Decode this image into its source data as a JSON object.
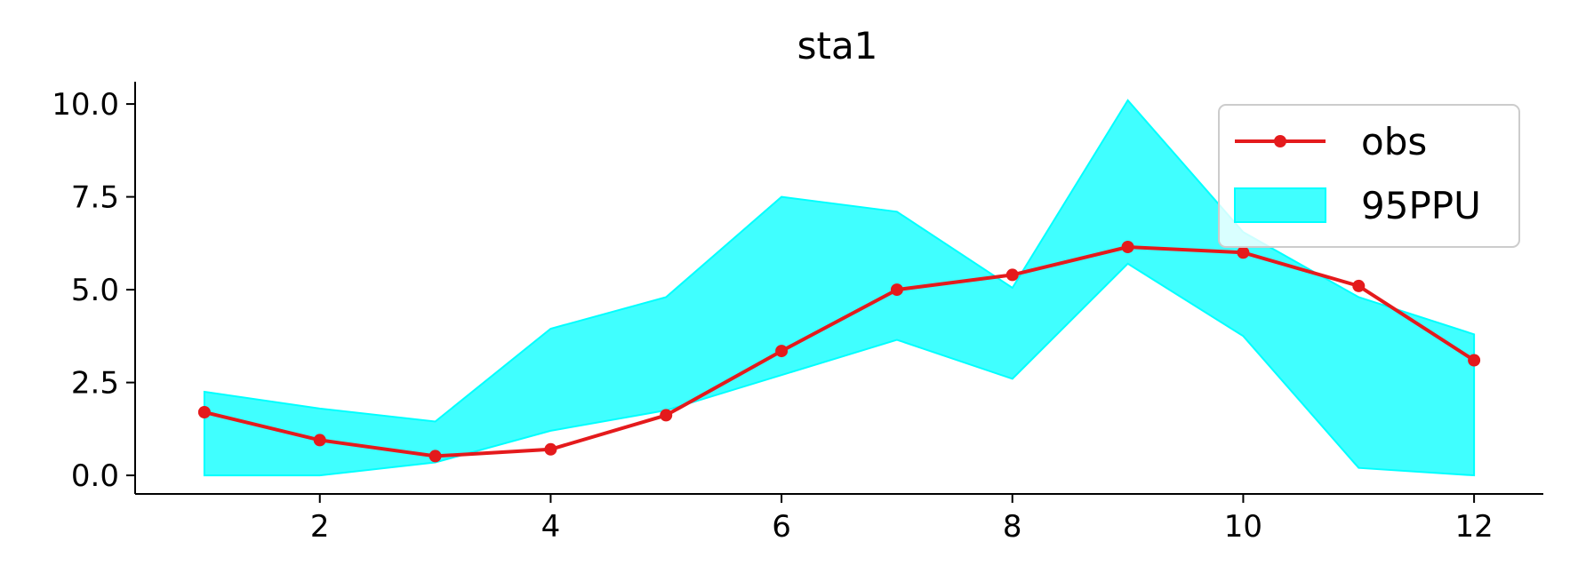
{
  "chart_data": {
    "type": "line",
    "title": "sta1",
    "xlabel": "",
    "ylabel": "",
    "xlim": [
      0.4,
      12.6
    ],
    "ylim": [
      -0.5,
      10.6
    ],
    "xticks": [
      2,
      4,
      6,
      8,
      10,
      12
    ],
    "yticks": [
      0.0,
      2.5,
      5.0,
      7.5,
      10.0
    ],
    "xtick_labels": [
      "2",
      "4",
      "6",
      "8",
      "10",
      "12"
    ],
    "ytick_labels": [
      "0.0",
      "2.5",
      "5.0",
      "7.5",
      "10.0"
    ],
    "grid": false,
    "legend_position": "top-right",
    "x": [
      1,
      2,
      3,
      4,
      5,
      6,
      7,
      8,
      9,
      10,
      11,
      12
    ],
    "series": [
      {
        "name": "obs",
        "kind": "line-marker",
        "color": "#e41a1c",
        "values": [
          1.7,
          0.95,
          0.52,
          0.7,
          1.62,
          3.35,
          5.0,
          5.4,
          6.15,
          6.0,
          5.1,
          3.1
        ]
      },
      {
        "name": "95PPU",
        "kind": "band",
        "color": "#00ffff",
        "lower": [
          0.0,
          0.0,
          0.35,
          1.2,
          1.75,
          2.7,
          3.65,
          2.6,
          5.7,
          3.75,
          0.2,
          0.0
        ],
        "upper": [
          2.25,
          1.8,
          1.45,
          3.95,
          4.8,
          7.5,
          7.1,
          5.05,
          10.1,
          6.55,
          4.8,
          3.8
        ]
      }
    ]
  }
}
